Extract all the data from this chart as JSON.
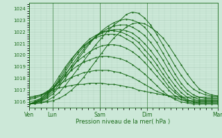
{
  "bg_color": "#cce8d8",
  "grid_color": "#aaccb8",
  "line_color": "#1a6b1a",
  "ylim": [
    1015.5,
    1024.5
  ],
  "yticks": [
    1016,
    1017,
    1018,
    1019,
    1020,
    1021,
    1022,
    1023,
    1024
  ],
  "xlabel": "Pression niveau de la mer( hPa )",
  "xtick_labels": [
    "Ven",
    "Lun",
    "Sam",
    "Dim",
    "Mar"
  ],
  "xtick_positions": [
    0.0,
    0.5,
    1.5,
    2.5,
    4.0
  ],
  "day_vlines": [
    0.0,
    0.5,
    1.5,
    2.5,
    4.0
  ],
  "xlim": [
    0,
    4.0
  ],
  "series": [
    [
      1015.8,
      1015.85,
      1015.9,
      1016.0,
      1016.1,
      1016.3,
      1016.6,
      1017.0,
      1017.5,
      1018.1,
      1018.8,
      1019.5,
      1020.2,
      1020.9,
      1021.5,
      1022.0,
      1022.4,
      1022.7,
      1022.8,
      1022.7,
      1022.4,
      1022.0,
      1021.5,
      1020.8,
      1020.0,
      1019.2,
      1018.4,
      1017.7,
      1017.1,
      1016.8,
      1016.6,
      1016.5
    ],
    [
      1015.8,
      1015.85,
      1015.95,
      1016.1,
      1016.4,
      1016.8,
      1017.4,
      1018.1,
      1018.8,
      1019.5,
      1020.2,
      1020.9,
      1021.5,
      1022.1,
      1022.6,
      1023.0,
      1023.5,
      1023.7,
      1023.6,
      1023.2,
      1022.6,
      1021.8,
      1020.9,
      1020.0,
      1019.1,
      1018.3,
      1017.6,
      1017.1,
      1016.8,
      1016.6,
      1016.5,
      1016.5
    ],
    [
      1015.8,
      1015.9,
      1016.05,
      1016.3,
      1016.7,
      1017.3,
      1018.0,
      1018.8,
      1019.6,
      1020.3,
      1021.0,
      1021.6,
      1022.1,
      1022.5,
      1022.8,
      1023.0,
      1023.1,
      1023.0,
      1022.8,
      1022.4,
      1021.8,
      1021.1,
      1020.2,
      1019.3,
      1018.4,
      1017.6,
      1017.0,
      1016.6,
      1016.4,
      1016.3,
      1016.3,
      1016.3
    ],
    [
      1015.8,
      1015.9,
      1016.1,
      1016.4,
      1016.9,
      1017.5,
      1018.3,
      1019.1,
      1019.8,
      1020.5,
      1021.1,
      1021.6,
      1022.0,
      1022.3,
      1022.5,
      1022.6,
      1022.6,
      1022.4,
      1022.1,
      1021.7,
      1021.1,
      1020.4,
      1019.6,
      1018.7,
      1017.9,
      1017.2,
      1016.7,
      1016.4,
      1016.2,
      1016.2,
      1016.2,
      1016.2
    ],
    [
      1015.8,
      1015.95,
      1016.15,
      1016.5,
      1017.1,
      1017.8,
      1018.6,
      1019.4,
      1020.1,
      1020.7,
      1021.2,
      1021.6,
      1021.9,
      1022.1,
      1022.2,
      1022.2,
      1022.1,
      1021.9,
      1021.5,
      1021.0,
      1020.4,
      1019.7,
      1018.9,
      1018.1,
      1017.4,
      1016.8,
      1016.4,
      1016.2,
      1016.1,
      1016.1,
      1016.1,
      1016.1
    ],
    [
      1015.8,
      1016.0,
      1016.2,
      1016.6,
      1017.2,
      1018.0,
      1018.8,
      1019.6,
      1020.3,
      1020.9,
      1021.4,
      1021.7,
      1022.0,
      1022.1,
      1022.1,
      1022.0,
      1021.8,
      1021.5,
      1021.1,
      1020.5,
      1019.9,
      1019.2,
      1018.4,
      1017.7,
      1017.0,
      1016.5,
      1016.2,
      1016.0,
      1016.0,
      1016.0,
      1016.0,
      1016.0
    ],
    [
      1015.8,
      1016.0,
      1016.3,
      1016.8,
      1017.4,
      1018.2,
      1019.0,
      1019.7,
      1020.3,
      1020.8,
      1021.2,
      1021.5,
      1021.7,
      1021.8,
      1021.8,
      1021.7,
      1021.4,
      1021.1,
      1020.6,
      1020.0,
      1019.4,
      1018.7,
      1018.0,
      1017.3,
      1016.8,
      1016.4,
      1016.1,
      1016.0,
      1015.9,
      1015.9,
      1015.9,
      1015.9
    ],
    [
      1016.0,
      1016.1,
      1016.3,
      1016.7,
      1017.2,
      1017.8,
      1018.4,
      1019.0,
      1019.5,
      1019.9,
      1020.3,
      1020.6,
      1020.8,
      1020.9,
      1020.9,
      1020.8,
      1020.6,
      1020.3,
      1019.9,
      1019.4,
      1018.8,
      1018.2,
      1017.6,
      1017.0,
      1016.5,
      1016.2,
      1016.0,
      1015.9,
      1015.9,
      1015.9,
      1015.9,
      1015.9
    ],
    [
      1016.2,
      1016.3,
      1016.5,
      1016.8,
      1017.2,
      1017.7,
      1018.2,
      1018.7,
      1019.1,
      1019.4,
      1019.6,
      1019.8,
      1019.9,
      1019.9,
      1019.8,
      1019.7,
      1019.5,
      1019.2,
      1018.8,
      1018.4,
      1017.9,
      1017.4,
      1016.9,
      1016.5,
      1016.2,
      1016.0,
      1015.9,
      1015.8,
      1015.8,
      1015.8,
      1015.8,
      1015.8
    ],
    [
      1016.3,
      1016.4,
      1016.6,
      1016.9,
      1017.2,
      1017.5,
      1017.8,
      1018.1,
      1018.3,
      1018.5,
      1018.6,
      1018.7,
      1018.7,
      1018.7,
      1018.6,
      1018.5,
      1018.3,
      1018.1,
      1017.8,
      1017.5,
      1017.2,
      1016.9,
      1016.7,
      1016.5,
      1016.3,
      1016.2,
      1016.1,
      1016.1,
      1016.1,
      1016.1,
      1016.1,
      1016.1
    ],
    [
      1016.4,
      1016.5,
      1016.6,
      1016.8,
      1017.0,
      1017.2,
      1017.3,
      1017.4,
      1017.5,
      1017.5,
      1017.6,
      1017.6,
      1017.6,
      1017.5,
      1017.5,
      1017.4,
      1017.3,
      1017.2,
      1017.0,
      1016.9,
      1016.8,
      1016.7,
      1016.6,
      1016.5,
      1016.5,
      1016.4,
      1016.4,
      1016.4,
      1016.4,
      1016.4,
      1016.4,
      1016.4
    ]
  ]
}
